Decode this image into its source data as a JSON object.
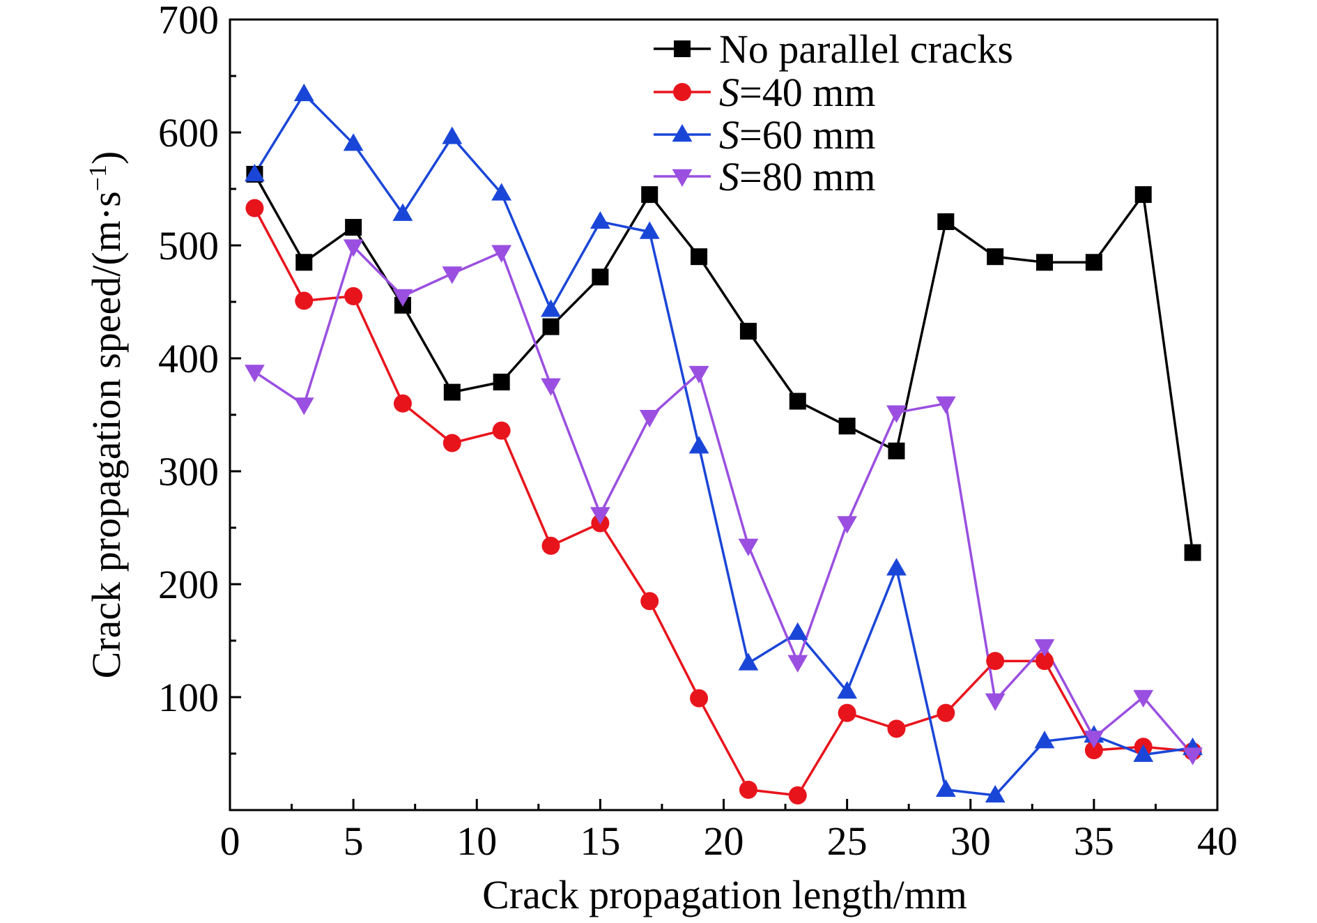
{
  "chart_data": {
    "type": "line",
    "title": "",
    "xlabel": "Crack propagation length/mm",
    "ylabel": "Crack propagation speed/(m·s",
    "ylabel_superscript": "−1",
    "ylabel_close": ")",
    "xlim": [
      0,
      40
    ],
    "ylim": [
      0,
      700
    ],
    "x_ticks": [
      0,
      5,
      10,
      15,
      20,
      25,
      30,
      35,
      40
    ],
    "x_tick_labels": [
      "0",
      "5",
      "10",
      "15",
      "20",
      "25",
      "30",
      "35",
      "40"
    ],
    "y_ticks": [
      100,
      200,
      300,
      400,
      500,
      600,
      700
    ],
    "y_tick_labels": [
      "100",
      "200",
      "300",
      "400",
      "500",
      "600",
      "700"
    ],
    "grid": false,
    "legend_position": "top-right",
    "x": [
      1,
      3,
      5,
      7,
      9,
      11,
      13,
      15,
      17,
      19,
      21,
      23,
      25,
      27,
      29,
      31,
      33,
      35,
      37,
      39
    ],
    "series": [
      {
        "name": "No parallel cracks",
        "legend_italic": "",
        "legend_rest": "No parallel cracks",
        "color": "#000000",
        "marker": "square",
        "values": [
          563,
          485,
          516,
          447,
          370,
          379,
          428,
          472,
          545,
          490,
          424,
          362,
          340,
          318,
          521,
          490,
          485,
          485,
          545,
          228
        ]
      },
      {
        "name": "S=40 mm",
        "legend_italic": "S",
        "legend_rest": "=40 mm",
        "color": "#e8141c",
        "marker": "circle",
        "values": [
          533,
          451,
          455,
          360,
          325,
          336,
          234,
          254,
          185,
          99,
          18,
          13,
          86,
          72,
          86,
          132,
          132,
          53,
          56,
          52
        ]
      },
      {
        "name": "S=60 mm",
        "legend_italic": "S",
        "legend_rest": "=60 mm",
        "color": "#1a46d8",
        "marker": "triangle-up",
        "values": [
          563,
          634,
          590,
          528,
          596,
          546,
          443,
          521,
          512,
          322,
          130,
          157,
          105,
          214,
          18,
          13,
          61,
          66,
          49,
          55
        ]
      },
      {
        "name": "S=80 mm",
        "legend_italic": "S",
        "legend_rest": "=80 mm",
        "color": "#9a4fe0",
        "marker": "triangle-down",
        "values": [
          388,
          359,
          499,
          455,
          475,
          494,
          376,
          262,
          348,
          387,
          234,
          131,
          254,
          352,
          360,
          97,
          145,
          64,
          100,
          49
        ]
      }
    ]
  }
}
